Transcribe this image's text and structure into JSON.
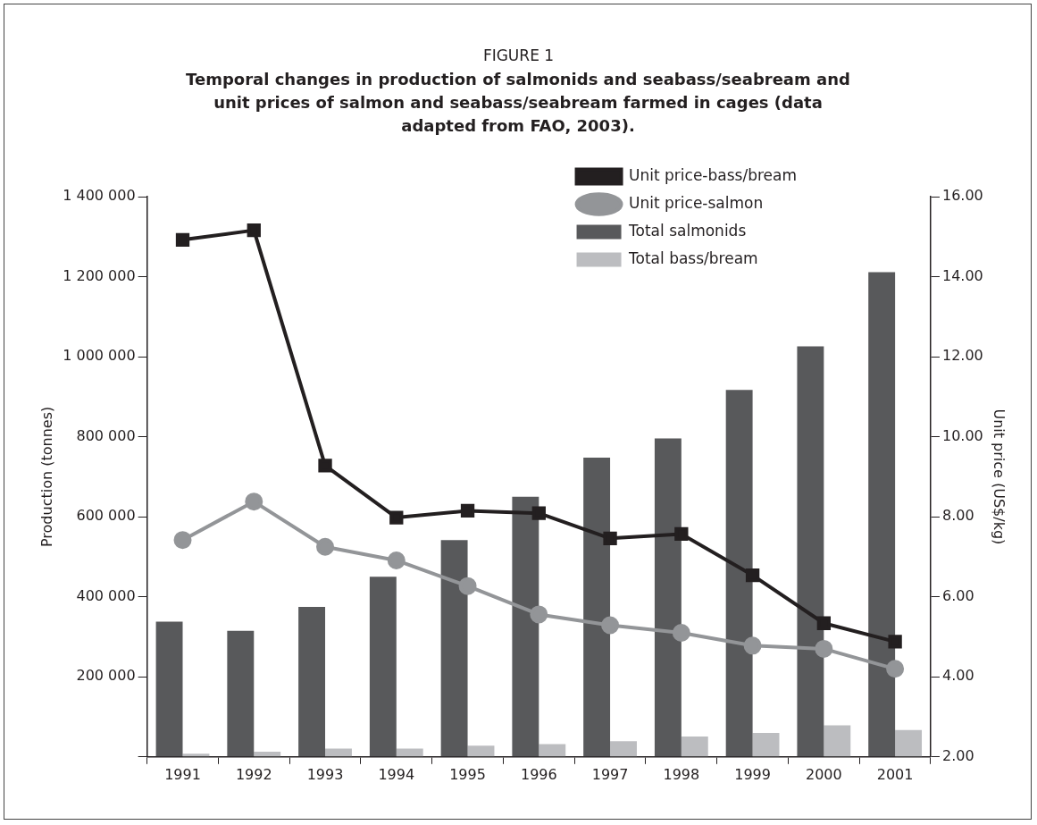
{
  "chart_data": {
    "type": "bar",
    "title": "FIGURE 1",
    "subtitle": "Temporal changes in production of salmonids and seabass/seabream and unit prices of salmon and seabass/seabream farmed in cages (data adapted from FAO, 2003).",
    "ylabel": "Production (tonnes)",
    "y2label": "Unit price (US$/kg)",
    "categories": [
      "1991",
      "1992",
      "1993",
      "1994",
      "1995",
      "1996",
      "1997",
      "1998",
      "1999",
      "2000",
      "2001"
    ],
    "series": [
      {
        "name": "Total salmonids",
        "color": "#58595b",
        "values": [
          338000,
          315000,
          375000,
          450000,
          542000,
          650000,
          748000,
          796000,
          917000,
          1026000,
          1211000
        ]
      },
      {
        "name": "Total bass/bream",
        "color": "#bcbdc0",
        "values": [
          8000,
          13000,
          21000,
          21000,
          28000,
          32000,
          39000,
          51000,
          60000,
          79000,
          67000
        ]
      },
      {
        "name": "Unit price-bass/bream",
        "type": "line",
        "axis": "y2",
        "marker": "square",
        "color": "#231f20",
        "values": [
          14.92,
          15.16,
          9.28,
          7.98,
          8.15,
          8.09,
          7.46,
          7.57,
          6.54,
          5.34,
          4.88
        ]
      },
      {
        "name": "Unit price-salmon",
        "type": "line",
        "axis": "y2",
        "marker": "circle",
        "color": "#939598",
        "values": [
          7.42,
          8.38,
          7.25,
          6.91,
          6.27,
          5.56,
          5.29,
          5.1,
          4.78,
          4.7,
          4.2
        ]
      }
    ],
    "ylim": [
      0,
      1400000
    ],
    "yticks": [
      {
        "value": 0,
        "label": null
      },
      {
        "value": 200000,
        "label": "200 000"
      },
      {
        "value": 400000,
        "label": "400 000"
      },
      {
        "value": 600000,
        "label": "600 000"
      },
      {
        "value": 800000,
        "label": "800 000"
      },
      {
        "value": 1000000,
        "label": "1 000 000"
      },
      {
        "value": 1200000,
        "label": "1 200 000"
      },
      {
        "value": 1400000,
        "label": "1 400 000"
      }
    ],
    "y2lim": [
      2,
      16
    ],
    "y2ticks": [
      {
        "value": 2,
        "label": "2.00"
      },
      {
        "value": 4,
        "label": "4.00"
      },
      {
        "value": 6,
        "label": "6.00"
      },
      {
        "value": 8,
        "label": "8.00"
      },
      {
        "value": 10,
        "label": "10.00"
      },
      {
        "value": 12,
        "label": "12.00"
      },
      {
        "value": 14,
        "label": "14.00"
      },
      {
        "value": 16,
        "label": "16.00"
      }
    ],
    "grid": false,
    "legend": "top right"
  }
}
